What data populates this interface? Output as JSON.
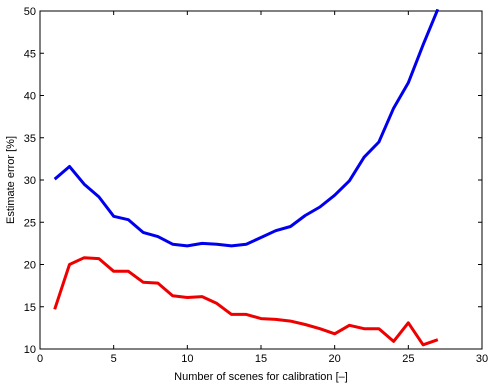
{
  "chart_data": {
    "type": "line",
    "title": "",
    "xlabel": "Number of scenes for calibration [–]",
    "ylabel": "Estimate error [%]",
    "xlim": [
      0,
      30
    ],
    "ylim": [
      10,
      50
    ],
    "xticks": [
      0,
      5,
      10,
      15,
      20,
      25,
      30
    ],
    "yticks": [
      10,
      15,
      20,
      25,
      30,
      35,
      40,
      45,
      50
    ],
    "grid": false,
    "legend": "none",
    "series": [
      {
        "color": "#0000ee",
        "x": [
          1,
          2,
          3,
          4,
          5,
          6,
          7,
          8,
          9,
          10,
          11,
          12,
          13,
          14,
          15,
          16,
          17,
          18,
          19,
          20,
          21,
          22,
          23,
          24,
          25,
          26,
          27
        ],
        "y": [
          30.1,
          31.6,
          29.5,
          28.0,
          25.7,
          25.3,
          23.8,
          23.3,
          22.4,
          22.2,
          22.5,
          22.4,
          22.2,
          22.4,
          23.2,
          24.0,
          24.5,
          25.8,
          26.8,
          28.2,
          29.9,
          32.7,
          34.5,
          38.5,
          41.5,
          46.0,
          50.2
        ]
      },
      {
        "color": "#ee0000",
        "x": [
          1,
          2,
          3,
          4,
          5,
          6,
          7,
          8,
          9,
          10,
          11,
          12,
          13,
          14,
          15,
          16,
          17,
          18,
          19,
          20,
          21,
          22,
          23,
          24,
          25,
          26,
          27
        ],
        "y": [
          14.7,
          20.0,
          20.8,
          20.7,
          19.2,
          19.2,
          17.9,
          17.8,
          16.3,
          16.1,
          16.2,
          15.4,
          14.1,
          14.1,
          13.6,
          13.5,
          13.3,
          12.9,
          12.4,
          11.8,
          12.8,
          12.4,
          12.4,
          10.9,
          13.1,
          10.5,
          11.1
        ]
      }
    ]
  }
}
